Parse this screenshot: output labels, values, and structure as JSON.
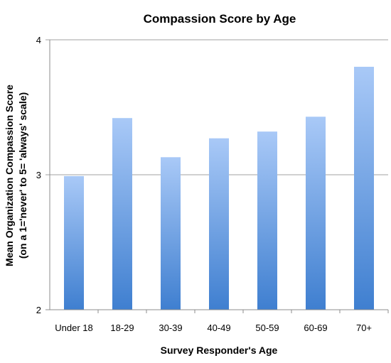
{
  "chart_data": {
    "type": "bar",
    "title": "Compassion Score by Age",
    "xlabel": "Survey Responder's Age",
    "ylabel": "Mean Organization Compassion Score",
    "ylabel_line2": "(on a 1='never' to 5= 'always' scale)",
    "categories": [
      "Under 18",
      "18-29",
      "30-39",
      "40-49",
      "50-59",
      "60-69",
      "70+"
    ],
    "values": [
      2.99,
      3.42,
      3.13,
      3.27,
      3.32,
      3.43,
      3.8
    ],
    "ylim": [
      2,
      4
    ],
    "yticks": [
      "2",
      "3",
      "4"
    ],
    "grid": true,
    "legend": "none",
    "bar_color_top": "#a9c9f7",
    "bar_color_bottom": "#3f7fd0"
  }
}
